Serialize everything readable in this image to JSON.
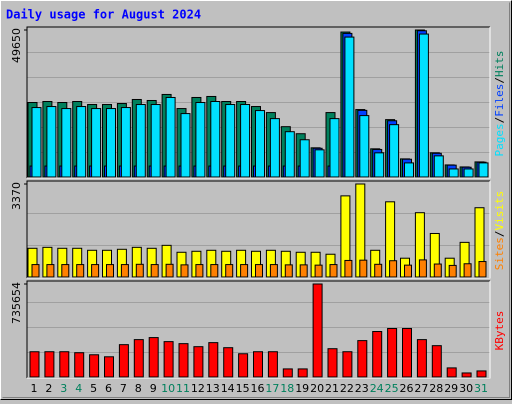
{
  "chart_data": [
    {
      "type": "bar",
      "title": "Daily usage for August 2024",
      "ylim": [
        0,
        49650
      ],
      "yticks": [
        49650
      ],
      "legend_separator": "/",
      "series": [
        {
          "name": "Hits",
          "color": "#00805c",
          "values": [
            25160,
            25500,
            25160,
            25500,
            24480,
            24480,
            24820,
            26180,
            25840,
            27880,
            23120,
            26860,
            27200,
            25500,
            25500,
            23800,
            21760,
            17000,
            14620,
            9860,
            21760,
            48960,
            22780,
            9520,
            19380,
            6120,
            49650,
            8160,
            4080,
            3400,
            5100
          ]
        },
        {
          "name": "Files",
          "color": "#0040ff",
          "values": [
            3700,
            3700,
            3700,
            3700,
            3700,
            3700,
            3700,
            3700,
            3700,
            3700,
            3700,
            3700,
            3700,
            3700,
            3700,
            3700,
            3700,
            3700,
            3700,
            9700,
            3700,
            48500,
            22500,
            9300,
            19000,
            6000,
            49400,
            8000,
            4000,
            3300,
            5000
          ]
        },
        {
          "name": "Pages",
          "color": "#00e0ff",
          "values": [
            23460,
            23800,
            23120,
            23800,
            23120,
            23120,
            23460,
            24480,
            24480,
            26860,
            21420,
            25160,
            25500,
            24480,
            24480,
            22440,
            19720,
            15300,
            12580,
            9180,
            19720,
            47260,
            20740,
            8160,
            17680,
            4760,
            48280,
            7140,
            2720,
            2720,
            4760
          ]
        }
      ]
    },
    {
      "type": "bar",
      "ylim": [
        0,
        3370
      ],
      "yticks": [
        3370
      ],
      "legend_separator": "/",
      "series": [
        {
          "name": "Visits",
          "color": "#ffff00",
          "values": [
            1040,
            1075,
            1040,
            1040,
            968,
            968,
            1004,
            1075,
            1040,
            1147,
            896,
            932,
            968,
            932,
            968,
            932,
            968,
            932,
            896,
            896,
            825,
            2940,
            3370,
            968,
            2725,
            681,
            2330,
            1577,
            681,
            1255,
            2510
          ]
        },
        {
          "name": "Sites",
          "color": "#ff8000",
          "values": [
            450,
            450,
            450,
            450,
            450,
            450,
            450,
            460,
            450,
            460,
            440,
            450,
            450,
            450,
            450,
            450,
            450,
            440,
            440,
            430,
            450,
            600,
            610,
            460,
            590,
            430,
            620,
            470,
            420,
            480,
            560
          ]
        }
      ]
    },
    {
      "type": "bar",
      "ylim": [
        0,
        735654
      ],
      "yticks": [
        735654
      ],
      "categories": [
        "1",
        "2",
        "3",
        "4",
        "5",
        "6",
        "7",
        "8",
        "9",
        "10",
        "11",
        "12",
        "13",
        "14",
        "15",
        "16",
        "17",
        "18",
        "19",
        "20",
        "21",
        "22",
        "23",
        "24",
        "25",
        "26",
        "27",
        "28",
        "29",
        "30",
        "31"
      ],
      "category_colors": [
        "#000000",
        "#000000",
        "#00805c",
        "#00805c",
        "#000000",
        "#000000",
        "#000000",
        "#000000",
        "#000000",
        "#00805c",
        "#00805c",
        "#000000",
        "#000000",
        "#000000",
        "#000000",
        "#000000",
        "#00805c",
        "#00805c",
        "#000000",
        "#000000",
        "#000000",
        "#000000",
        "#000000",
        "#00805c",
        "#00805c",
        "#000000",
        "#000000",
        "#000000",
        "#000000",
        "#000000",
        "#00805c"
      ],
      "series": [
        {
          "name": "KBytes",
          "color": "#ff0000",
          "values": [
            199900,
            200000,
            200000,
            191900,
            175900,
            159900,
            255900,
            295800,
            311800,
            279900,
            263900,
            239900,
            271900,
            231900,
            183900,
            200000,
            200000,
            64000,
            64000,
            735654,
            223900,
            200000,
            287900,
            359800,
            383800,
            383800,
            295800,
            247900,
            72000,
            32000,
            48000
          ]
        }
      ]
    }
  ]
}
